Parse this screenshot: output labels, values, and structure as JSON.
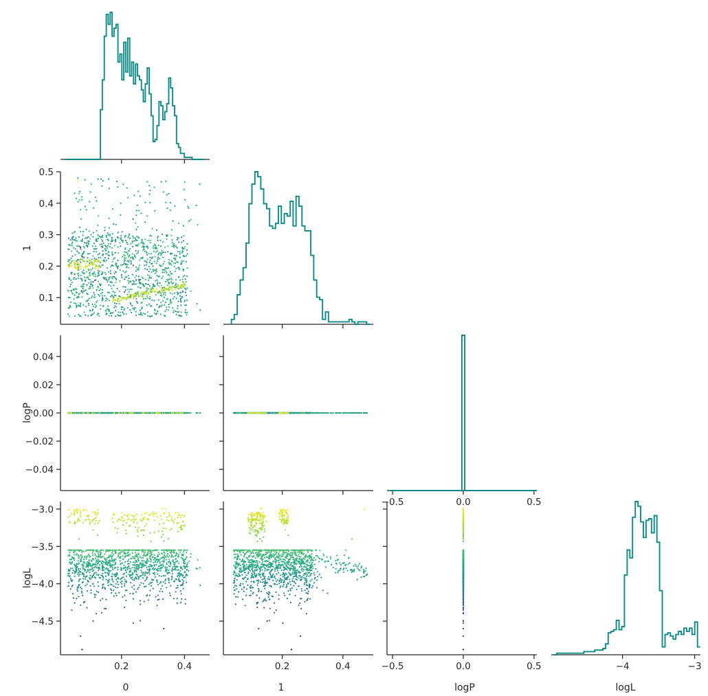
{
  "chart_data": {
    "type": "scatter",
    "variables": [
      "0",
      "1",
      "logP",
      "logL"
    ],
    "color_map": "viridis",
    "color_variable": "logL",
    "hist_color": "#0b8a87",
    "axes": {
      "0": {
        "label": "0",
        "range": [
          0.015,
          0.48
        ],
        "ticks": [
          {
            "v": 0.2,
            "label": "0.2"
          },
          {
            "v": 0.4,
            "label": "0.4"
          }
        ]
      },
      "1": {
        "label": "1",
        "range": [
          0.015,
          0.5
        ],
        "ticks": [
          {
            "v": 0.1,
            "label": "0.1"
          },
          {
            "v": 0.2,
            "label": "0.2"
          },
          {
            "v": 0.3,
            "label": "0.3"
          },
          {
            "v": 0.4,
            "label": "0.4"
          },
          {
            "v": 0.5,
            "label": "0.5"
          }
        ],
        "xticks": [
          {
            "v": 0.2,
            "label": "0.2"
          },
          {
            "v": 0.4,
            "label": "0.4"
          }
        ]
      },
      "logP": {
        "label": "logP",
        "range": [
          -0.055,
          0.055
        ],
        "ticks": [
          {
            "v": 0.04,
            "label": "0.04"
          },
          {
            "v": 0.02,
            "label": "0.02"
          },
          {
            "v": 0.0,
            "label": "0.00"
          },
          {
            "v": -0.02,
            "label": "−0.02"
          },
          {
            "v": -0.04,
            "label": "−0.04"
          }
        ],
        "xrange": [
          -0.52,
          0.52
        ],
        "xticks": [
          {
            "v": -0.5,
            "label": "−0.5"
          },
          {
            "v": 0.0,
            "label": "0.0"
          },
          {
            "v": 0.5,
            "label": "0.5"
          }
        ]
      },
      "logL": {
        "label": "logL",
        "range": [
          -4.95,
          -2.9
        ],
        "ticks": [
          {
            "v": -3.0,
            "label": "−3.0"
          },
          {
            "v": -3.5,
            "label": "−3.5"
          },
          {
            "v": -4.0,
            "label": "−4.0"
          },
          {
            "v": -4.5,
            "label": "−4.5"
          }
        ],
        "xrange": [
          -4.95,
          -2.92
        ],
        "xticks": [
          {
            "v": -4,
            "label": "−4"
          },
          {
            "v": -3,
            "label": "−3"
          }
        ]
      }
    },
    "histograms": {
      "0": {
        "range": [
          0.015,
          0.48
        ],
        "counts": [
          0,
          0,
          0,
          0,
          0,
          0,
          0,
          0,
          0,
          0,
          0,
          0,
          0,
          0,
          0,
          0,
          0,
          0,
          25,
          40,
          62,
          73,
          68,
          74,
          62,
          66,
          68,
          49,
          53,
          40,
          59,
          44,
          61,
          42,
          49,
          38,
          48,
          42,
          40,
          35,
          29,
          38,
          46,
          33,
          22,
          9,
          10,
          17,
          29,
          27,
          20,
          24,
          28,
          41,
          36,
          27,
          22,
          8,
          6,
          3,
          3,
          1,
          1,
          1,
          1,
          0,
          0,
          0,
          0,
          0,
          0
        ],
        "centers_start": 0.0245,
        "bin_width": 0.0062
      },
      "1": {
        "range": [
          0.015,
          0.5
        ],
        "counts": [
          2,
          4,
          12,
          18,
          23,
          33,
          49,
          57,
          62,
          60,
          55,
          49,
          47,
          40,
          39,
          41,
          48,
          41,
          45,
          44,
          50,
          40,
          52,
          48,
          40,
          38,
          38,
          28,
          18,
          11,
          10,
          2,
          5,
          1,
          1,
          1,
          1,
          1,
          1,
          1,
          2,
          1,
          0,
          1,
          1,
          1,
          0
        ],
        "centers_start": 0.037,
        "bin_width": 0.0097
      },
      "logP": {
        "range": [
          -0.52,
          0.52
        ],
        "counts_note": "single bin at 0",
        "peak": 1
      },
      "logL": {
        "range": [
          -4.95,
          -2.92
        ],
        "counts": [
          0,
          1,
          1,
          1,
          1,
          1,
          1,
          1,
          1,
          1,
          1,
          2,
          2,
          2,
          2,
          3,
          3,
          3,
          4,
          7,
          14,
          15,
          16,
          22,
          16,
          18,
          51,
          67,
          62,
          88,
          98,
          95,
          85,
          75,
          86,
          87,
          78,
          89,
          72,
          41,
          5,
          13,
          14,
          12,
          10,
          13,
          15,
          13,
          17,
          15,
          17,
          13,
          21,
          5
        ],
        "centers_start": -4.93,
        "bin_width": 0.0375
      }
    },
    "pairs": [
      {
        "x": "0",
        "y": "1"
      },
      {
        "x": "0",
        "y": "logP"
      },
      {
        "x": "1",
        "y": "logP"
      },
      {
        "x": "0",
        "y": "logL"
      },
      {
        "x": "1",
        "y": "logL"
      },
      {
        "x": "logP",
        "y": "logL"
      }
    ],
    "points": [
      [
        0.033,
        0.198,
        0.0,
        -3.01
      ],
      [
        0.05,
        0.199,
        0.0,
        -3.03
      ],
      [
        0.06,
        0.19,
        0.0,
        -3.05
      ],
      [
        0.07,
        0.19,
        0.0,
        -3.1
      ],
      [
        0.085,
        0.2,
        0.0,
        -3.15
      ],
      [
        0.1,
        0.205,
        0.0,
        -3.2
      ],
      [
        0.11,
        0.21,
        0.0,
        -3.28
      ],
      [
        0.125,
        0.22,
        0.0,
        -3.35
      ],
      [
        0.06,
        0.47,
        0.0,
        -3.0
      ],
      [
        0.065,
        0.43,
        0.0,
        -3.4
      ],
      [
        0.067,
        0.41,
        0.0,
        -3.55
      ],
      [
        0.07,
        0.38,
        0.0,
        -3.62
      ],
      [
        0.072,
        0.35,
        0.0,
        -3.7
      ],
      [
        0.074,
        0.42,
        0.0,
        -3.65
      ],
      [
        0.078,
        0.31,
        0.0,
        -3.8
      ],
      [
        0.2,
        0.1,
        0.0,
        -3.05
      ],
      [
        0.23,
        0.105,
        0.0,
        -3.15
      ],
      [
        0.25,
        0.11,
        0.0,
        -3.28
      ],
      [
        0.27,
        0.112,
        0.0,
        -3.35
      ],
      [
        0.3,
        0.12,
        0.0,
        -3.04
      ],
      [
        0.33,
        0.13,
        0.0,
        -2.99
      ],
      [
        0.36,
        0.135,
        0.0,
        -3.1
      ],
      [
        0.4,
        0.14,
        0.0,
        -3.22
      ],
      [
        0.38,
        0.138,
        0.0,
        -3.05
      ],
      [
        0.34,
        0.13,
        0.0,
        -3.0
      ],
      [
        0.28,
        0.115,
        0.0,
        -3.2
      ],
      [
        0.22,
        0.1,
        0.0,
        -3.1
      ],
      [
        0.18,
        0.092,
        0.0,
        -3.25
      ],
      [
        0.06,
        0.1,
        0.0,
        -4.05
      ],
      [
        0.08,
        0.12,
        0.0,
        -4.25
      ],
      [
        0.09,
        0.14,
        0.0,
        -4.32
      ],
      [
        0.11,
        0.15,
        0.0,
        -4.5
      ],
      [
        0.07,
        0.26,
        0.0,
        -4.7
      ],
      [
        0.075,
        0.23,
        0.0,
        -4.88
      ],
      [
        0.12,
        0.28,
        0.0,
        -4.4
      ],
      [
        0.14,
        0.26,
        0.0,
        -4.2
      ],
      [
        0.15,
        0.09,
        0.0,
        -3.8
      ],
      [
        0.18,
        0.28,
        0.0,
        -3.9
      ],
      [
        0.21,
        0.22,
        0.0,
        -4.0
      ],
      [
        0.24,
        0.15,
        0.0,
        -3.75
      ],
      [
        0.27,
        0.26,
        0.0,
        -3.85
      ],
      [
        0.3,
        0.2,
        0.0,
        -3.95
      ],
      [
        0.33,
        0.18,
        0.0,
        -3.7
      ],
      [
        0.36,
        0.24,
        0.0,
        -3.9
      ],
      [
        0.39,
        0.21,
        0.0,
        -3.65
      ],
      [
        0.42,
        0.12,
        0.0,
        -3.6
      ],
      [
        0.45,
        0.06,
        0.0,
        -4.02
      ],
      [
        0.44,
        0.08,
        0.0,
        -3.8
      ],
      [
        0.1,
        0.18,
        0.0,
        -3.75
      ],
      [
        0.13,
        0.24,
        0.0,
        -3.8
      ],
      [
        0.16,
        0.16,
        0.0,
        -3.72
      ],
      [
        0.19,
        0.2,
        0.0,
        -3.6
      ],
      [
        0.22,
        0.27,
        0.0,
        -3.7
      ],
      [
        0.25,
        0.19,
        0.0,
        -3.62
      ],
      [
        0.28,
        0.13,
        0.0,
        -3.78
      ],
      [
        0.31,
        0.26,
        0.0,
        -3.68
      ],
      [
        0.34,
        0.15,
        0.0,
        -3.82
      ],
      [
        0.37,
        0.22,
        0.0,
        -3.74
      ],
      [
        0.4,
        0.17,
        0.0,
        -3.7
      ]
    ]
  }
}
